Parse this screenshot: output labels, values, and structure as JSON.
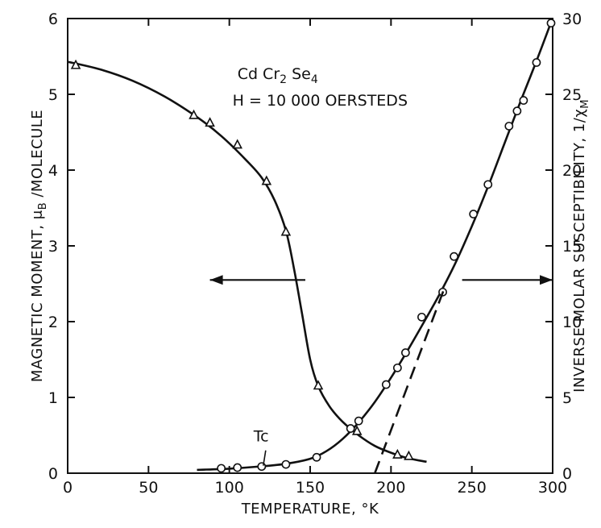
{
  "chart_data": {
    "type": "scatter",
    "x": {
      "label": "TEMPERATURE, °K",
      "range": [
        0,
        300
      ],
      "ticks": [
        0,
        50,
        100,
        150,
        200,
        250,
        300
      ]
    },
    "y_left": {
      "label_main": "MAGNETIC MOMENT, μ",
      "label_sub": "B",
      "label_tail": " /MOLECULE",
      "range": [
        0,
        6
      ],
      "ticks": [
        0,
        1,
        2,
        3,
        4,
        5,
        6
      ]
    },
    "y_right": {
      "label_main": "INVERSE MOLAR SUSCEPTIBILITY, 1/χ",
      "label_sub": "M",
      "range": [
        0,
        30
      ],
      "ticks": [
        0,
        5,
        10,
        15,
        20,
        25,
        30
      ]
    },
    "annotations": {
      "formula_parts": [
        "Cd Cr",
        "2",
        " Se",
        "4"
      ],
      "field": "H = 10 000  OERSTEDS",
      "tc": "Tc"
    },
    "series": [
      {
        "marker": "triangle",
        "axis": "left",
        "points": [
          [
            5,
            5.38
          ],
          [
            78,
            4.72
          ],
          [
            88,
            4.62
          ],
          [
            105,
            4.33
          ],
          [
            123,
            3.85
          ],
          [
            135,
            3.18
          ],
          [
            155,
            1.15
          ],
          [
            179,
            0.55
          ],
          [
            204,
            0.24
          ],
          [
            211,
            0.22
          ]
        ],
        "curve": [
          [
            0,
            5.43
          ],
          [
            20,
            5.33
          ],
          [
            40,
            5.18
          ],
          [
            60,
            4.97
          ],
          [
            80,
            4.7
          ],
          [
            95,
            4.45
          ],
          [
            110,
            4.14
          ],
          [
            120,
            3.9
          ],
          [
            128,
            3.6
          ],
          [
            135,
            3.2
          ],
          [
            140,
            2.7
          ],
          [
            145,
            2.1
          ],
          [
            150,
            1.5
          ],
          [
            155,
            1.15
          ],
          [
            162,
            0.88
          ],
          [
            170,
            0.68
          ],
          [
            180,
            0.5
          ],
          [
            190,
            0.36
          ],
          [
            200,
            0.27
          ],
          [
            210,
            0.2
          ],
          [
            222,
            0.15
          ]
        ]
      },
      {
        "marker": "circle",
        "axis": "right",
        "points": [
          [
            95,
            0.32
          ],
          [
            105,
            0.37
          ],
          [
            120,
            0.44
          ],
          [
            135,
            0.58
          ],
          [
            154,
            1.05
          ],
          [
            175,
            2.95
          ],
          [
            180,
            3.45
          ],
          [
            197,
            5.85
          ],
          [
            204,
            6.95
          ],
          [
            209,
            7.95
          ],
          [
            219,
            10.3
          ],
          [
            232,
            11.95
          ],
          [
            239,
            14.3
          ],
          [
            251,
            17.1
          ],
          [
            260,
            19.05
          ],
          [
            273,
            22.9
          ],
          [
            278,
            23.9
          ],
          [
            282,
            24.6
          ],
          [
            290,
            27.1
          ],
          [
            299,
            29.7
          ]
        ],
        "curve": [
          [
            80,
            0.22
          ],
          [
            100,
            0.3
          ],
          [
            120,
            0.45
          ],
          [
            135,
            0.62
          ],
          [
            150,
            0.95
          ],
          [
            160,
            1.45
          ],
          [
            170,
            2.25
          ],
          [
            180,
            3.35
          ],
          [
            190,
            4.7
          ],
          [
            200,
            6.3
          ],
          [
            210,
            8.05
          ],
          [
            220,
            9.9
          ],
          [
            230,
            11.8
          ],
          [
            240,
            13.9
          ],
          [
            250,
            16.3
          ],
          [
            260,
            18.9
          ],
          [
            270,
            21.7
          ],
          [
            280,
            24.5
          ],
          [
            290,
            27.2
          ],
          [
            299,
            29.75
          ]
        ]
      }
    ],
    "extrapolation": {
      "style": "dashed",
      "axis": "right",
      "from": [
        190,
        0
      ],
      "to": [
        233,
        12.2
      ]
    },
    "arrows": [
      {
        "direction": "left",
        "y_left": 2.55,
        "x_from": 147,
        "x_to": 88
      },
      {
        "direction": "right",
        "y_left": 2.55,
        "x_from": 244,
        "x_to": 300
      }
    ],
    "tc_marker": {
      "x": 121,
      "y_left": 0.1,
      "y_left_top": 0.3
    }
  }
}
